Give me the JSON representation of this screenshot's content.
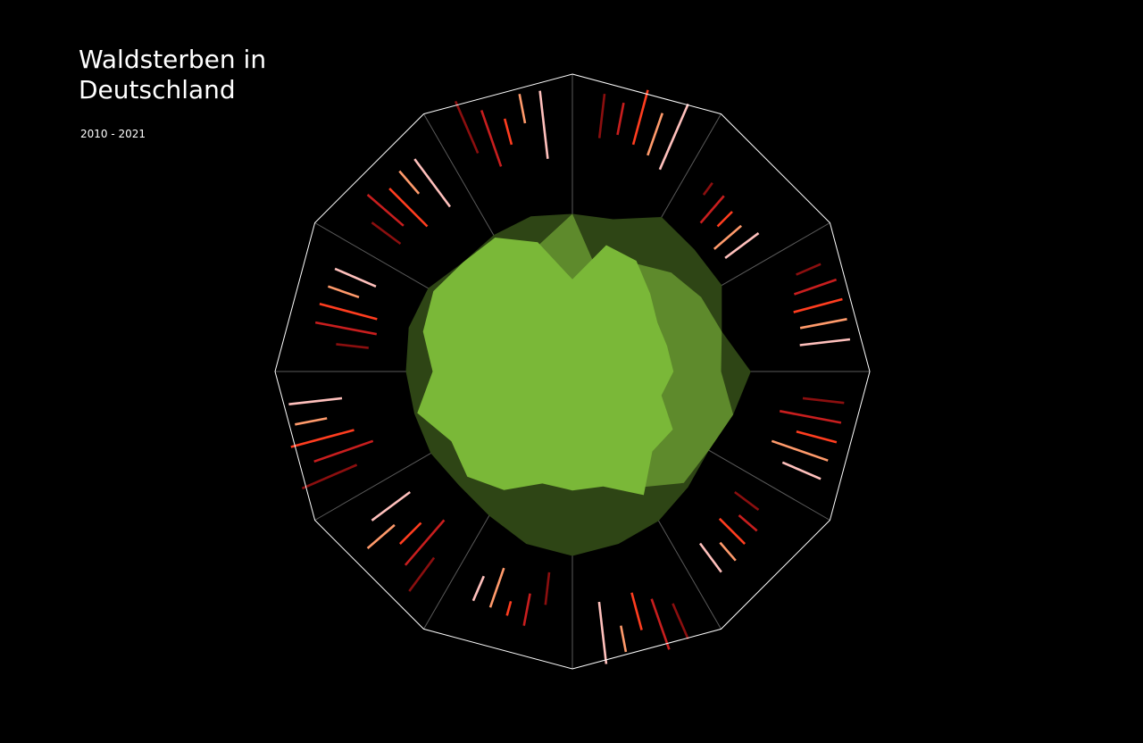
{
  "title": "Waldsterben in Deutschland",
  "subtitle": "2010 - 2021",
  "colors": {
    "background": "#000000",
    "frame": "#ffffff",
    "spokes": "#5a5a5a",
    "inner_area": "#7ab838",
    "middle_area": "#5e8a2c",
    "outer_area": "#2e4515",
    "bar_palette": [
      "#8b0f0f",
      "#c81e1e",
      "#ff3d1f",
      "#ff9a6b",
      "#ffc0bc"
    ]
  },
  "chart_data": {
    "type": "radar",
    "segments": 12,
    "grid": true,
    "area_series": [
      {
        "layer": "outer",
        "values": [
          0.53,
          0.53,
          0.6,
          0.58,
          0.58,
          0.52,
          0.6,
          0.56,
          0.53,
          0.55,
          0.58,
          0.6,
          0.62,
          0.6,
          0.56,
          0.54,
          0.55,
          0.55,
          0.56,
          0.57,
          0.56,
          0.52,
          0.53,
          0.54
        ]
      },
      {
        "layer": "middle",
        "values": [
          0.53,
          0.34,
          0.42,
          0.47,
          0.5,
          0.52,
          0.5,
          0.56,
          0.53,
          0.53,
          0.45,
          0.3,
          0.32,
          0.27,
          0.29,
          0.32,
          0.34,
          0.38,
          0.35,
          0.25,
          0.24,
          0.28,
          0.32,
          0.44
        ]
      },
      {
        "layer": "inner",
        "values": [
          0.31,
          0.44,
          0.43,
          0.37,
          0.33,
          0.33,
          0.34,
          0.31,
          0.39,
          0.38,
          0.48,
          0.4,
          0.4,
          0.39,
          0.46,
          0.5,
          0.47,
          0.54,
          0.47,
          0.52,
          0.54,
          0.52,
          0.52,
          0.45
        ]
      }
    ],
    "bar_groups": [
      {
        "bars": [
          [
            0.79,
            0.94,
            0
          ],
          [
            0.81,
            0.92,
            1
          ],
          [
            0.79,
            0.98,
            2
          ],
          [
            0.77,
            0.92,
            3
          ],
          [
            0.74,
            0.98,
            4
          ]
        ]
      },
      {
        "bars": [
          [
            0.74,
            0.79,
            0
          ],
          [
            0.66,
            0.78,
            1
          ],
          [
            0.69,
            0.76,
            2
          ],
          [
            0.63,
            0.75,
            3
          ],
          [
            0.64,
            0.78,
            4
          ]
        ]
      },
      {
        "bars": [
          [
            0.82,
            0.91,
            0
          ],
          [
            0.79,
            0.94,
            1
          ],
          [
            0.77,
            0.94,
            2
          ],
          [
            0.78,
            0.94,
            3
          ],
          [
            0.77,
            0.94,
            4
          ]
        ]
      },
      {
        "bars": [
          [
            0.78,
            0.92,
            0
          ],
          [
            0.71,
            0.92,
            1
          ],
          [
            0.78,
            0.92,
            2
          ],
          [
            0.71,
            0.91,
            3
          ],
          [
            0.77,
            0.91,
            4
          ]
        ]
      },
      {
        "bars": [
          [
            0.68,
            0.78,
            0
          ],
          [
            0.74,
            0.82,
            1
          ],
          [
            0.7,
            0.82,
            2
          ],
          [
            0.76,
            0.84,
            3
          ],
          [
            0.72,
            0.84,
            4
          ]
        ]
      },
      {
        "bars": [
          [
            0.85,
            0.98,
            0
          ],
          [
            0.81,
            0.99,
            1
          ],
          [
            0.77,
            0.9,
            2
          ],
          [
            0.87,
            0.96,
            3
          ],
          [
            0.78,
            0.99,
            4
          ]
        ]
      },
      {
        "bars": [
          [
            0.68,
            0.79,
            0
          ],
          [
            0.76,
            0.87,
            1
          ],
          [
            0.8,
            0.85,
            2
          ],
          [
            0.7,
            0.84,
            3
          ],
          [
            0.75,
            0.84,
            4
          ]
        ]
      },
      {
        "bars": [
          [
            0.78,
            0.92,
            0
          ],
          [
            0.66,
            0.86,
            1
          ],
          [
            0.72,
            0.82,
            2
          ],
          [
            0.79,
            0.91,
            3
          ],
          [
            0.68,
            0.84,
            4
          ]
        ]
      },
      {
        "bars": [
          [
            0.79,
            0.99,
            0
          ],
          [
            0.71,
            0.92,
            1
          ],
          [
            0.76,
            0.98,
            2
          ],
          [
            0.84,
            0.95,
            3
          ],
          [
            0.78,
            0.96,
            4
          ]
        ]
      },
      {
        "bars": [
          [
            0.69,
            0.8,
            0
          ],
          [
            0.67,
            0.88,
            1
          ],
          [
            0.68,
            0.88,
            2
          ],
          [
            0.76,
            0.87,
            3
          ],
          [
            0.72,
            0.87,
            4
          ]
        ]
      },
      {
        "bars": [
          [
            0.72,
            0.84,
            0
          ],
          [
            0.75,
            0.91,
            1
          ],
          [
            0.69,
            0.87,
            2
          ],
          [
            0.79,
            0.89,
            3
          ],
          [
            0.69,
            0.89,
            4
          ]
        ]
      },
      {
        "bars": [
          [
            0.8,
            0.99,
            0
          ],
          [
            0.73,
            0.93,
            1
          ],
          [
            0.79,
            0.88,
            2
          ],
          [
            0.85,
            0.95,
            3
          ],
          [
            0.72,
            0.95,
            4
          ]
        ]
      }
    ]
  }
}
